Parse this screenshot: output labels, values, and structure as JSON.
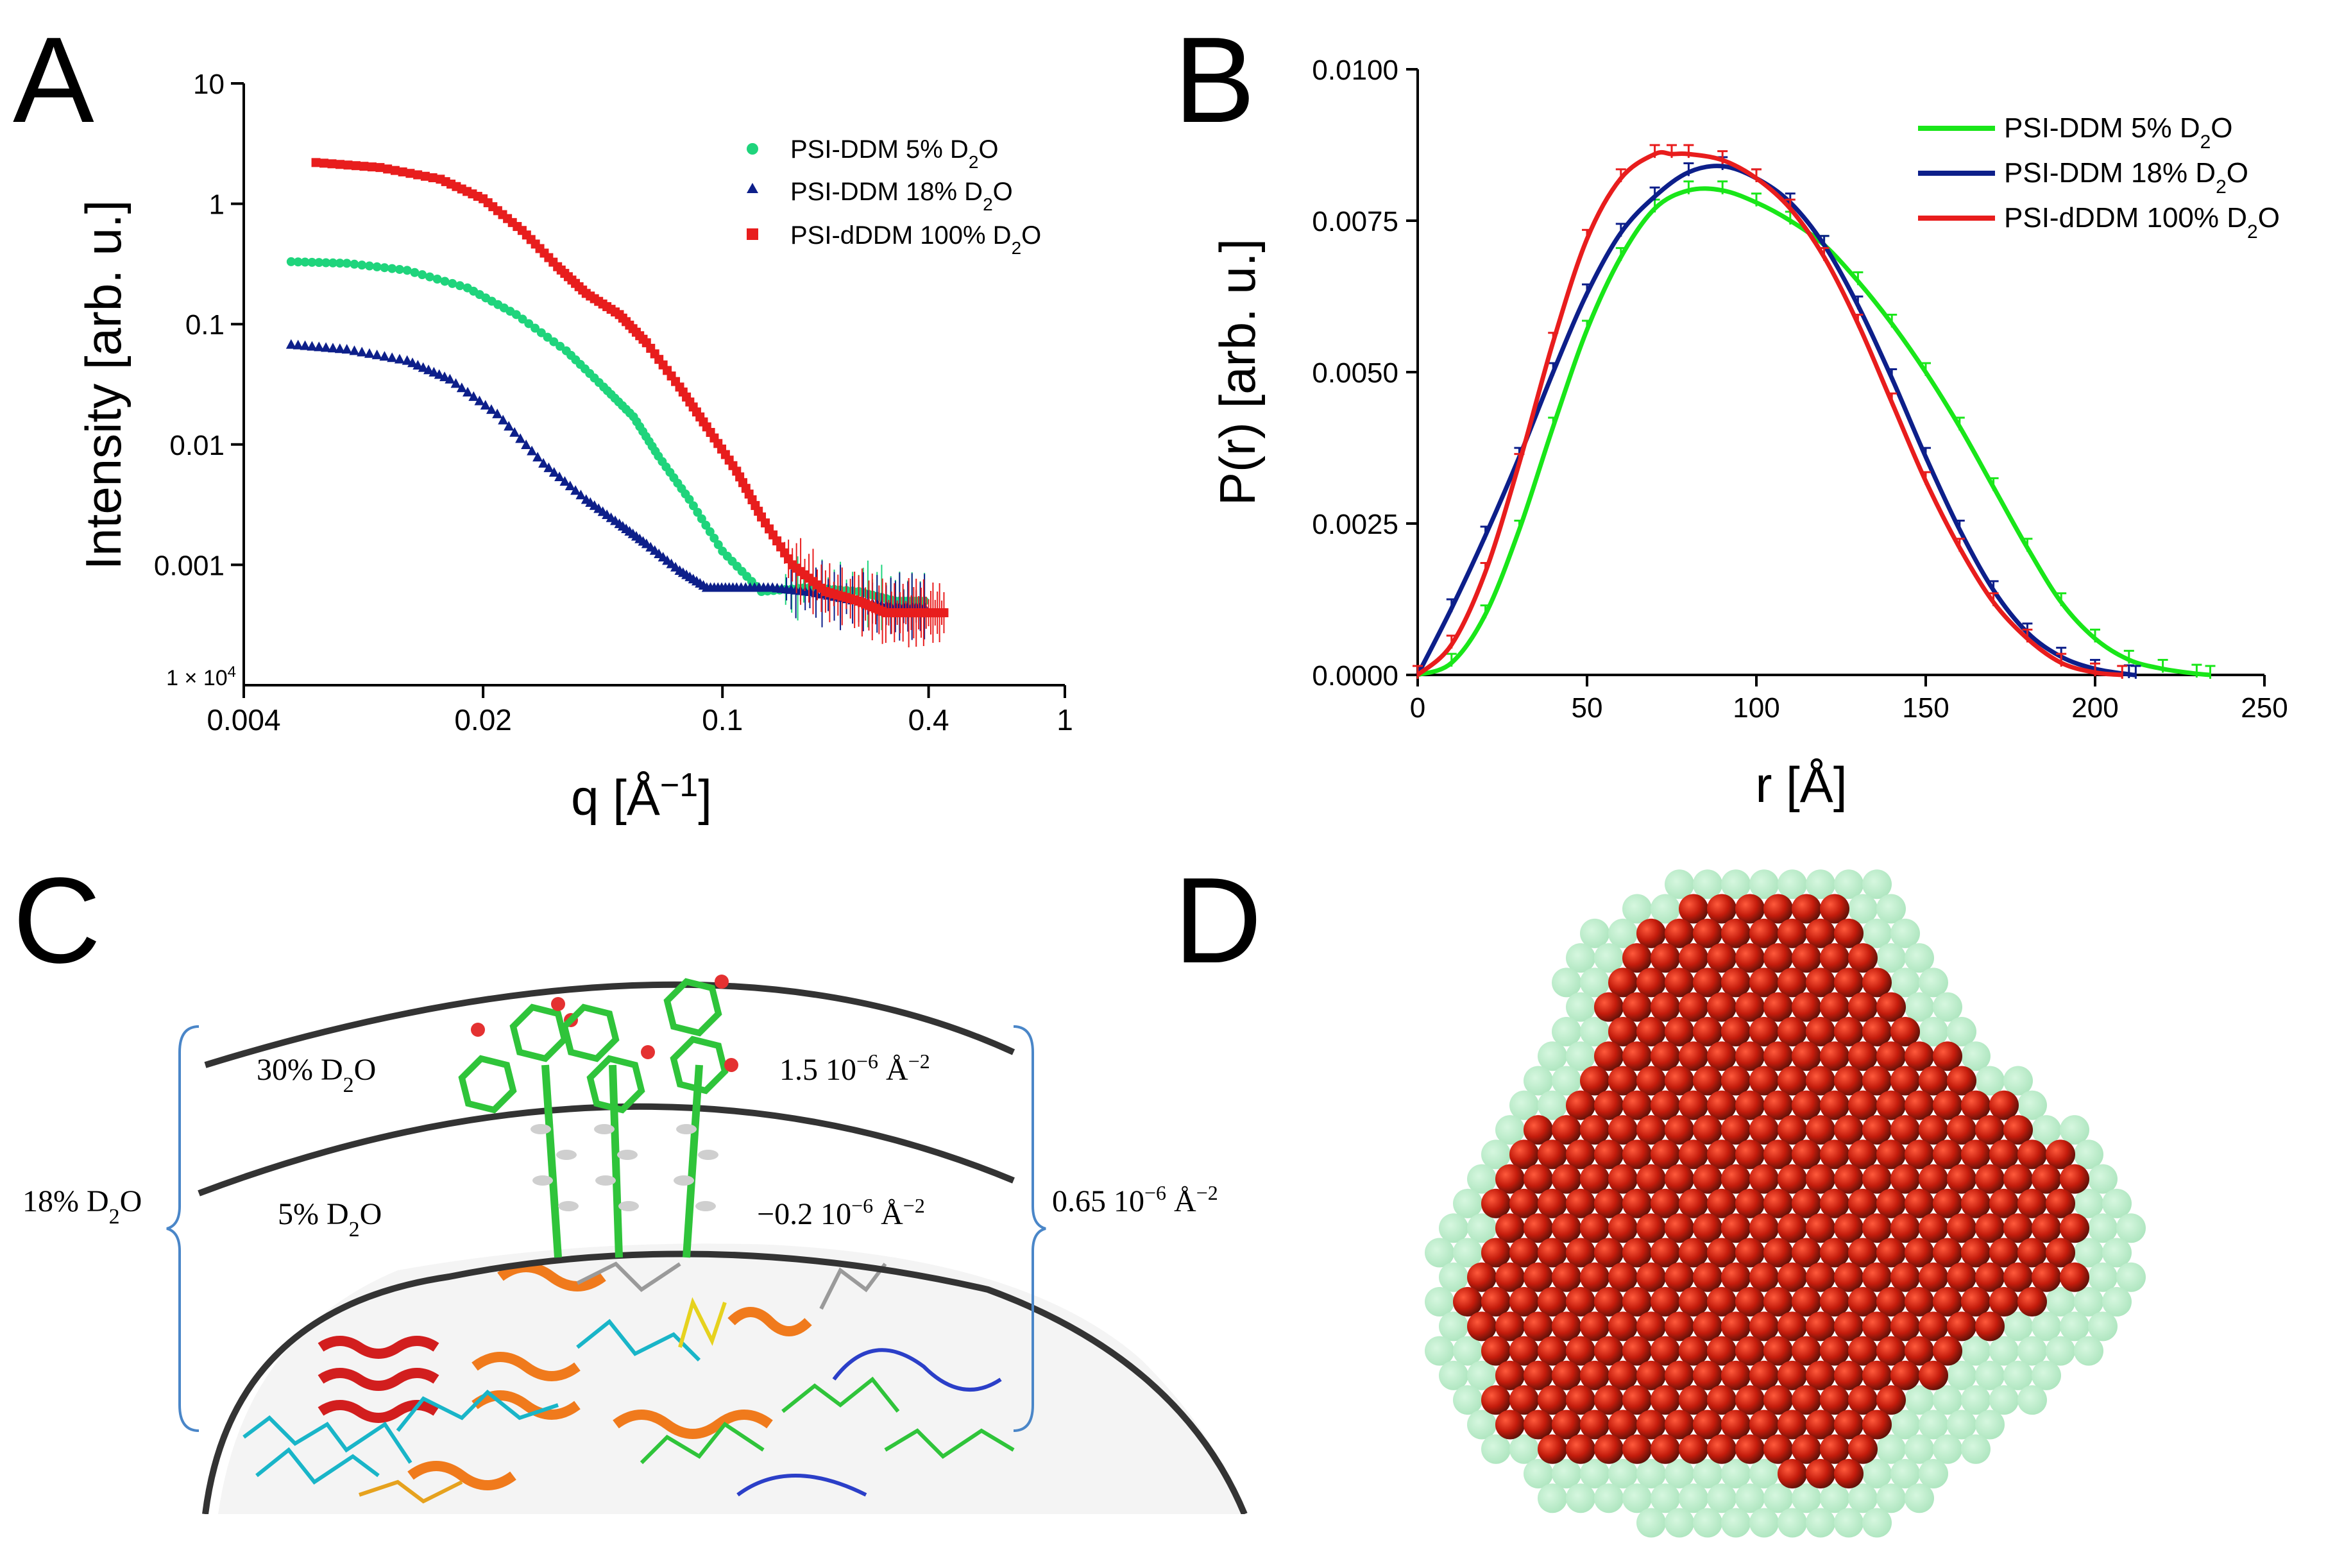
{
  "panel_labels": {
    "a": "A",
    "b": "B",
    "c": "C",
    "d": "D"
  },
  "chart_data": [
    {
      "panel": "A",
      "type": "scatter",
      "xscale": "log",
      "yscale": "log",
      "xlabel_main": "q [Å",
      "xlabel_sup": "−1",
      "xlabel_tail": "]",
      "ylabel": "Intensity [arb. u.]",
      "xlim": [
        0.004,
        1
      ],
      "ylim": [
        0.0001,
        10
      ],
      "xticks": [
        {
          "v": 0.004,
          "label": "0.004"
        },
        {
          "v": 0.02,
          "label": "0.02"
        },
        {
          "v": 0.1,
          "label": "0.1"
        },
        {
          "v": 0.4,
          "label": "0.4"
        },
        {
          "v": 1,
          "label": "1"
        }
      ],
      "yticks": [
        {
          "v": 10,
          "label": "10"
        },
        {
          "v": 1,
          "label": "1"
        },
        {
          "v": 0.1,
          "label": "0.1"
        },
        {
          "v": 0.01,
          "label": "0.01"
        },
        {
          "v": 0.001,
          "label": "0.001"
        }
      ],
      "ytick_bottom": {
        "v": 0.0001,
        "prefix": "1 × 10",
        "sup": "4"
      },
      "legend_position": "top-right",
      "series": [
        {
          "name": "PSI-DDM 5% D",
          "sub": "2",
          "suffix": "O",
          "color": "#1fd47c",
          "marker": "circle",
          "q": [
            0.0055,
            0.008,
            0.012,
            0.018,
            0.025,
            0.035,
            0.045,
            0.055,
            0.065,
            0.08,
            0.1,
            0.13,
            0.18,
            0.25,
            0.32,
            0.4
          ],
          "I": [
            0.33,
            0.32,
            0.28,
            0.2,
            0.12,
            0.06,
            0.03,
            0.017,
            0.008,
            0.0035,
            0.0013,
            0.0006,
            0.00065,
            0.0006,
            0.0005,
            0.0005
          ]
        },
        {
          "name": "PSI-DDM 18% D",
          "sub": "2",
          "suffix": "O",
          "color": "#0d1f8a",
          "marker": "triangle",
          "q": [
            0.0055,
            0.008,
            0.012,
            0.016,
            0.022,
            0.03,
            0.04,
            0.05,
            0.06,
            0.075,
            0.09,
            0.11,
            0.14,
            0.18,
            0.25,
            0.32,
            0.4
          ],
          "I": [
            0.068,
            0.062,
            0.05,
            0.035,
            0.018,
            0.007,
            0.0035,
            0.0022,
            0.0015,
            0.0009,
            0.00065,
            0.00065,
            0.00065,
            0.0006,
            0.0005,
            0.00045,
            0.00045
          ]
        },
        {
          "name": "PSI-dDDM 100% D",
          "sub": "2",
          "suffix": "O",
          "color": "#e81d1d",
          "marker": "square",
          "q": [
            0.0065,
            0.01,
            0.015,
            0.02,
            0.026,
            0.033,
            0.04,
            0.05,
            0.06,
            0.075,
            0.09,
            0.11,
            0.13,
            0.16,
            0.2,
            0.25,
            0.3,
            0.35,
            0.4,
            0.45
          ],
          "I": [
            2.2,
            2.0,
            1.6,
            1.1,
            0.6,
            0.3,
            0.18,
            0.12,
            0.07,
            0.03,
            0.014,
            0.006,
            0.0025,
            0.001,
            0.0006,
            0.0005,
            0.0004,
            0.0004,
            0.0004,
            0.0004
          ]
        }
      ]
    },
    {
      "panel": "B",
      "type": "line",
      "xlabel": "r [Å]",
      "ylabel": "P(r) [arb. u.]",
      "xlim": [
        0,
        250
      ],
      "ylim": [
        0,
        0.01
      ],
      "xticks": [
        "0",
        "50",
        "100",
        "150",
        "200",
        "250"
      ],
      "yticks": [
        "0.0000",
        "0.0025",
        "0.0050",
        "0.0075",
        "0.0100"
      ],
      "legend_position": "top-right",
      "series": [
        {
          "name": "PSI-DDM 5% D",
          "sub": "2",
          "suffix": "O",
          "color": "#19e619",
          "r": [
            0,
            10,
            20,
            30,
            40,
            50,
            60,
            70,
            80,
            90,
            100,
            110,
            120,
            130,
            140,
            150,
            160,
            170,
            180,
            190,
            200,
            210,
            220,
            230,
            234
          ],
          "p": [
            0,
            0.0002,
            0.001,
            0.0024,
            0.0041,
            0.0057,
            0.0069,
            0.0077,
            0.008,
            0.008,
            0.0078,
            0.0075,
            0.0071,
            0.0065,
            0.0058,
            0.005,
            0.0041,
            0.0031,
            0.0021,
            0.0012,
            0.0006,
            0.00025,
            0.0001,
            2e-05,
            0
          ]
        },
        {
          "name": "PSI-DDM 18% D",
          "sub": "2",
          "suffix": "O",
          "color": "#0d1f8a",
          "r": [
            0,
            10,
            20,
            30,
            40,
            50,
            60,
            70,
            80,
            90,
            100,
            110,
            120,
            130,
            140,
            150,
            160,
            170,
            180,
            190,
            200,
            210,
            212
          ],
          "p": [
            0,
            0.0011,
            0.0023,
            0.0036,
            0.005,
            0.0063,
            0.0073,
            0.0079,
            0.0083,
            0.0084,
            0.0082,
            0.0078,
            0.0071,
            0.0061,
            0.0049,
            0.0036,
            0.0024,
            0.0014,
            0.0007,
            0.0003,
            0.0001,
            1e-05,
            0
          ]
        },
        {
          "name": "PSI-dDDM 100% D",
          "sub": "2",
          "suffix": "O",
          "color": "#e81d1d",
          "r": [
            0,
            10,
            20,
            30,
            40,
            50,
            60,
            70,
            75,
            80,
            90,
            100,
            110,
            120,
            130,
            140,
            150,
            160,
            170,
            180,
            190,
            200,
            208
          ],
          "p": [
            0,
            0.0005,
            0.0017,
            0.0035,
            0.0055,
            0.0072,
            0.0082,
            0.0086,
            0.0086,
            0.0086,
            0.0085,
            0.0082,
            0.0077,
            0.0069,
            0.0058,
            0.0045,
            0.0032,
            0.0021,
            0.0012,
            0.0006,
            0.0002,
            4e-05,
            0
          ]
        }
      ]
    }
  ],
  "panel_c": {
    "left_label": {
      "prefix": "18% D",
      "sub": "2",
      "suffix": "O"
    },
    "outer_left": {
      "prefix": "30% D",
      "sub": "2",
      "suffix": "O"
    },
    "outer_right": {
      "value": "1.5 10",
      "exp": "−6",
      "unit": " Å",
      "unit_exp": "−2"
    },
    "inner_left": {
      "prefix": "5% D",
      "sub": "2",
      "suffix": "O"
    },
    "inner_right": {
      "value": "−0.2 10",
      "exp": "−6",
      "unit": " Å",
      "unit_exp": "−2"
    },
    "right_label": {
      "value": "0.65 10",
      "exp": "−6",
      "unit": " Å",
      "unit_exp": "−2"
    }
  },
  "panel_d": {
    "core_color": "#c41c0c",
    "shell_color": "#9fe6b4"
  }
}
